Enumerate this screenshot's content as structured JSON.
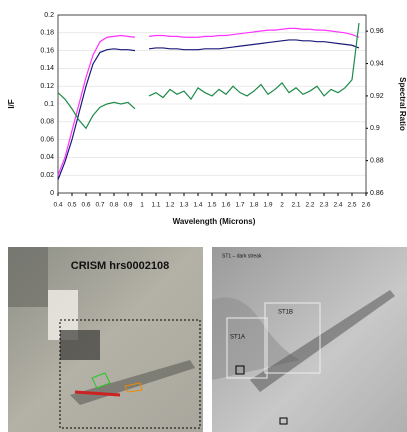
{
  "chart_data": {
    "type": "line",
    "xlabel": "Wavelength (Microns)",
    "ylabel": "I/F",
    "y2label": "Spectral Ratio",
    "x": [
      0.4,
      0.45,
      0.5,
      0.55,
      0.6,
      0.65,
      0.7,
      0.75,
      0.8,
      0.85,
      0.9,
      0.95,
      1.0,
      1.05,
      1.1,
      1.15,
      1.2,
      1.25,
      1.3,
      1.35,
      1.4,
      1.45,
      1.5,
      1.55,
      1.6,
      1.65,
      1.7,
      1.75,
      1.8,
      1.85,
      1.9,
      1.95,
      2.0,
      2.05,
      2.1,
      2.15,
      2.2,
      2.25,
      2.3,
      2.35,
      2.4,
      2.45,
      2.5,
      2.55
    ],
    "series": [
      {
        "color": "#ff33ff",
        "values": [
          0.02,
          0.04,
          0.07,
          0.1,
          0.13,
          0.155,
          0.17,
          0.175,
          0.176,
          0.177,
          0.176,
          0.175,
          null,
          0.176,
          0.177,
          0.177,
          0.176,
          0.176,
          0.175,
          0.175,
          0.175,
          0.176,
          0.176,
          0.177,
          0.177,
          0.178,
          0.179,
          0.18,
          0.181,
          0.182,
          0.183,
          0.183,
          0.184,
          0.185,
          0.185,
          0.184,
          0.184,
          0.183,
          0.183,
          0.182,
          0.181,
          0.18,
          0.178,
          0.175
        ]
      },
      {
        "color": "#1a1a7a",
        "values": [
          0.015,
          0.035,
          0.06,
          0.09,
          0.12,
          0.145,
          0.158,
          0.161,
          0.162,
          0.161,
          0.161,
          0.16,
          null,
          0.162,
          0.163,
          0.163,
          0.162,
          0.162,
          0.161,
          0.161,
          0.161,
          0.162,
          0.162,
          0.162,
          0.163,
          0.164,
          0.165,
          0.166,
          0.167,
          0.168,
          0.169,
          0.17,
          0.171,
          0.172,
          0.172,
          0.171,
          0.171,
          0.17,
          0.17,
          0.169,
          0.168,
          0.167,
          0.166,
          0.163
        ]
      },
      {
        "color": "#1e8a4a",
        "axis": "y2",
        "values": [
          0.922,
          0.918,
          0.912,
          0.905,
          0.9,
          0.908,
          0.913,
          0.915,
          0.916,
          0.915,
          0.916,
          0.912,
          null,
          0.92,
          0.922,
          0.919,
          0.924,
          0.921,
          0.923,
          0.918,
          0.925,
          0.922,
          0.92,
          0.924,
          0.921,
          0.926,
          0.922,
          0.92,
          0.923,
          0.927,
          0.921,
          0.924,
          0.928,
          0.922,
          0.925,
          0.921,
          0.923,
          0.926,
          0.92,
          0.924,
          0.922,
          0.925,
          0.93,
          0.965
        ]
      }
    ],
    "xlim": [
      0.4,
      2.6
    ],
    "xticks": [
      0.4,
      0.5,
      0.6,
      0.7,
      0.8,
      0.9,
      1,
      1.1,
      1.2,
      1.3,
      1.4,
      1.5,
      1.6,
      1.7,
      1.8,
      1.9,
      2,
      2.1,
      2.2,
      2.3,
      2.4,
      2.5,
      2.6
    ],
    "ylim": [
      0,
      0.2
    ],
    "yticks": [
      0,
      0.02,
      0.04,
      0.06,
      0.08,
      0.1,
      0.12,
      0.14,
      0.16,
      0.18,
      0.2
    ],
    "y2lim": [
      0.86,
      0.97
    ],
    "y2ticks": [
      0.86,
      0.88,
      0.9,
      0.92,
      0.94,
      0.96
    ],
    "grid": true
  },
  "images": {
    "left": {
      "label": "CRISM hrs0002108"
    },
    "right": {
      "caption": "ST1 – dark streak",
      "labels": [
        "ST1A",
        "ST1B"
      ]
    }
  }
}
